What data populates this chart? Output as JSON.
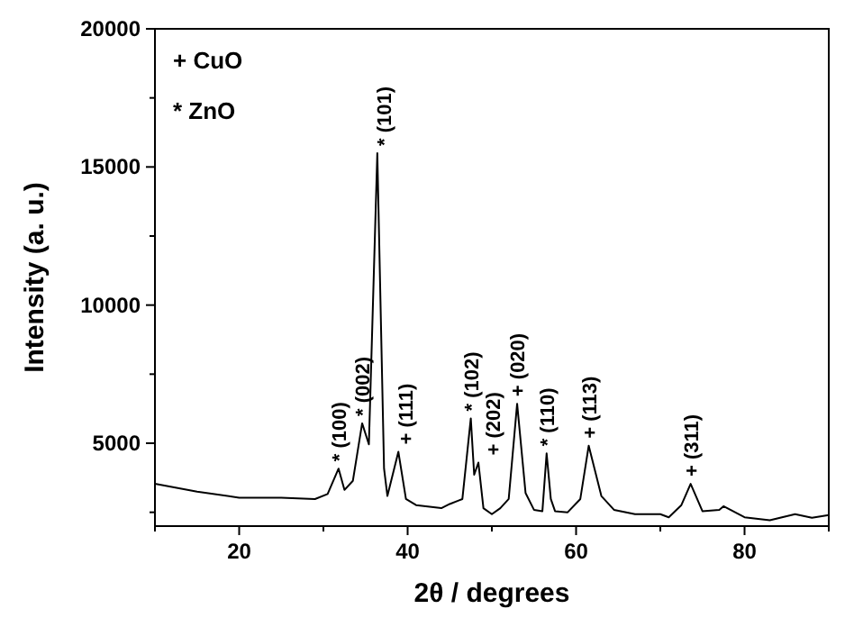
{
  "chart_data": {
    "type": "line",
    "xlabel": "2θ / degrees",
    "ylabel": "Intensity (a. u.)",
    "x": [
      10,
      15,
      20,
      25,
      29,
      30.5,
      31.8,
      32.5,
      33.5,
      34.6,
      35.4,
      36.4,
      37.2,
      37.6,
      38.9,
      39.8,
      41,
      44,
      45,
      46.5,
      47.5,
      47.9,
      48.4,
      49,
      50,
      51,
      52,
      53,
      54,
      55,
      56,
      56.5,
      57,
      57.5,
      59,
      60.5,
      61.5,
      63,
      64.5,
      67,
      70,
      71,
      72.5,
      73.6,
      75,
      77,
      77.5,
      80,
      83,
      86,
      88,
      90
    ],
    "series": [
      {
        "color": "#000000",
        "values": [
          3530,
          3250,
          3030,
          3030,
          2980,
          3160,
          4080,
          3310,
          3640,
          5720,
          4960,
          15500,
          4080,
          3090,
          4690,
          2980,
          2760,
          2650,
          2800,
          2980,
          5900,
          3860,
          4300,
          2650,
          2430,
          2650,
          2980,
          6430,
          3200,
          2590,
          2540,
          4630,
          2980,
          2540,
          2500,
          2980,
          4910,
          3090,
          2590,
          2430,
          2430,
          2320,
          2760,
          3530,
          2540,
          2590,
          2720,
          2320,
          2210,
          2430,
          2300,
          2400
        ]
      }
    ],
    "xlim": [
      10,
      90
    ],
    "xticks": [
      {
        "value": 10,
        "label": null
      },
      20,
      {
        "value": 30,
        "label": null
      },
      40,
      {
        "value": 50,
        "label": null
      },
      60,
      {
        "value": 70,
        "label": null
      },
      80,
      {
        "value": 90,
        "label": null
      }
    ],
    "ylim": [
      2000,
      20000
    ],
    "yticks": [
      {
        "value": 2500,
        "label": null
      },
      5000,
      {
        "value": 7500,
        "label": null
      },
      10000,
      {
        "value": 12500,
        "label": null
      },
      15000,
      {
        "value": 17500,
        "label": null
      },
      20000
    ],
    "grid": false,
    "marker": "none",
    "line_style": "solid",
    "annotations": [
      "+ CuO",
      "* ZnO",
      {
        "text": "* (100)",
        "x": 31.8,
        "y": 4080
      },
      {
        "text": "* (002)",
        "x": 34.6,
        "y": 5720
      },
      {
        "text": "* (101)",
        "x": 36.4,
        "y": 15500
      },
      {
        "text": "+ (111)",
        "x": 38.9,
        "y": 4690
      },
      {
        "text": "* (102)",
        "x": 47.5,
        "y": 5900
      },
      {
        "text": "+ (202)",
        "x": 48.4,
        "y": 4300
      },
      {
        "text": "+ (020)",
        "x": 53,
        "y": 6430
      },
      {
        "text": "* (110)",
        "x": 56.5,
        "y": 4630
      },
      {
        "text": "+ (113)",
        "x": 61.5,
        "y": 4910
      },
      {
        "text": "+ (311)",
        "x": 73.6,
        "y": 3530
      }
    ]
  }
}
